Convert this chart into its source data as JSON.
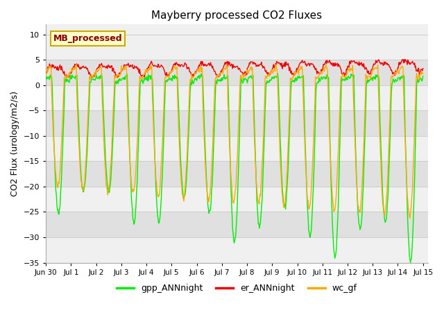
{
  "title": "Mayberry processed CO2 Fluxes",
  "ylabel": "CO2 Flux (urology/m2/s)",
  "ylim": [
    -35,
    12
  ],
  "yticks": [
    -35,
    -30,
    -25,
    -20,
    -15,
    -10,
    -5,
    0,
    5,
    10
  ],
  "legend_label": "MB_processed",
  "legend_bg": "#ffffcc",
  "legend_edge": "#ccaa00",
  "legend_text_color": "#880000",
  "line_colors": {
    "gpp": "#00ee00",
    "er": "#ee0000",
    "wc": "#ffaa00"
  },
  "legend_entries": [
    {
      "label": "gpp_ANNnight",
      "color": "#00ee00"
    },
    {
      "label": "er_ANNnight",
      "color": "#ee0000"
    },
    {
      "label": "wc_gf",
      "color": "#ffaa00"
    }
  ],
  "bg_color": "#ffffff",
  "plot_bg_light": "#f0f0f0",
  "plot_bg_dark": "#e0e0e0",
  "grid_color": "#cccccc",
  "xticklabels": [
    "Jun 30",
    "Jul 1",
    "Jul 2",
    "Jul 3",
    "Jul 4",
    "Jul 5",
    "Jul 6",
    "Jul 7",
    "Jul 8",
    "Jul 9",
    "Jul 10",
    "Jul 11",
    "Jul 12",
    "Jul 13",
    "Jul 14",
    "Jul 15"
  ],
  "n_days": 15,
  "figsize": [
    6.4,
    4.8
  ],
  "dpi": 100
}
